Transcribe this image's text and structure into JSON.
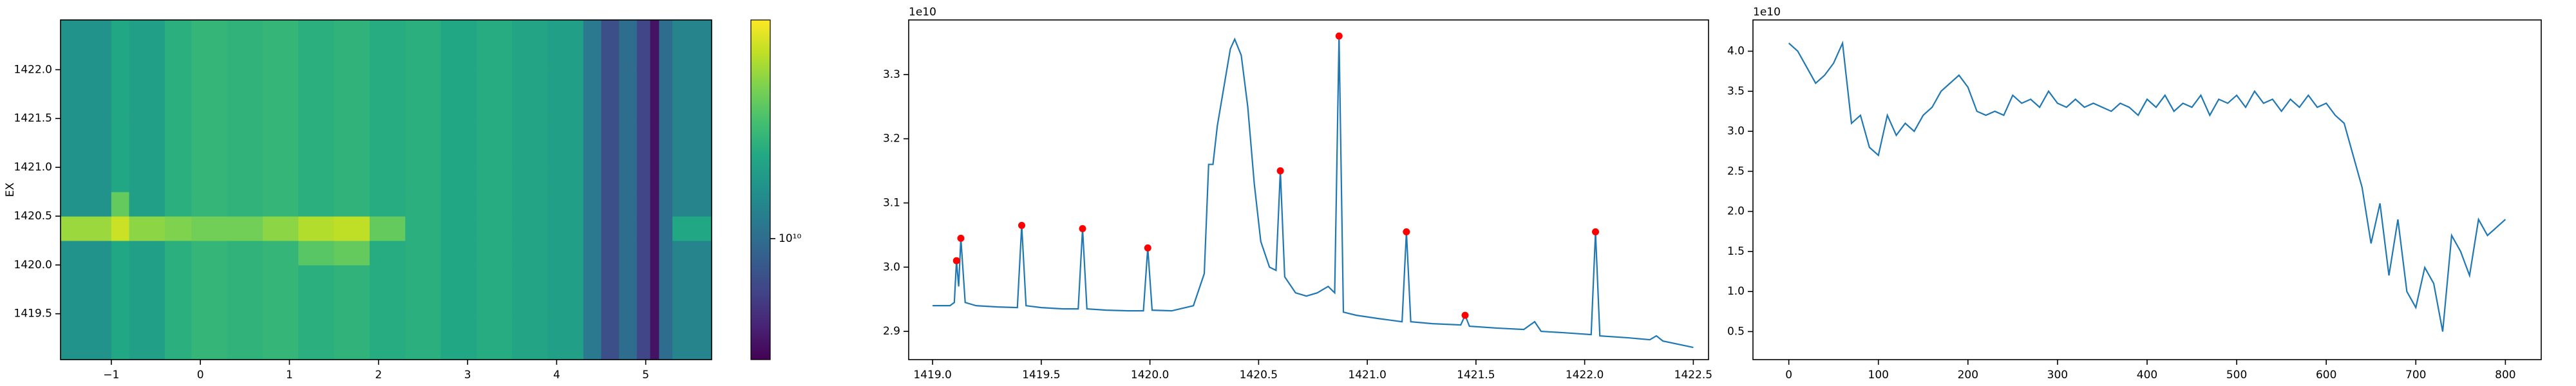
{
  "chart_data": [
    {
      "type": "heatmap",
      "ylabel": "EX",
      "x_edges": [
        -1.57,
        -1.0,
        -0.8,
        -0.4,
        -0.1,
        0.3,
        0.7,
        1.1,
        1.5,
        1.9,
        2.3,
        2.7,
        3.1,
        3.5,
        3.9,
        4.3,
        4.5,
        4.7,
        4.9,
        5.05,
        5.15,
        5.3,
        5.74
      ],
      "y_edges": [
        1419.03,
        1419.5,
        1420.0,
        1420.25,
        1420.5,
        1420.75,
        1421.0,
        1421.5,
        1422.0,
        1422.51
      ],
      "values": [
        [
          13500000000.0,
          16000000000.0,
          15000000000.0,
          17000000000.0,
          18000000000.0,
          17500000000.0,
          18000000000.0,
          17000000000.0,
          17500000000.0,
          16500000000.0,
          17000000000.0,
          16000000000.0,
          16500000000.0,
          15500000000.0,
          15000000000.0,
          11000000000.0,
          8000000000.0,
          10000000000.0,
          7500000000.0,
          5500000000.0,
          10000000000.0,
          12000000000.0
        ],
        [
          13500000000.0,
          16000000000.0,
          15000000000.0,
          17000000000.0,
          18000000000.0,
          17500000000.0,
          18000000000.0,
          17000000000.0,
          17500000000.0,
          16500000000.0,
          17000000000.0,
          16000000000.0,
          16500000000.0,
          15500000000.0,
          15000000000.0,
          11000000000.0,
          8000000000.0,
          10000000000.0,
          7500000000.0,
          5500000000.0,
          10000000000.0,
          12000000000.0
        ],
        [
          13500000000.0,
          16000000000.0,
          15000000000.0,
          17000000000.0,
          18000000000.0,
          17500000000.0,
          18000000000.0,
          21000000000.0,
          22000000000.0,
          16500000000.0,
          17000000000.0,
          16000000000.0,
          16500000000.0,
          15500000000.0,
          15000000000.0,
          11000000000.0,
          8000000000.0,
          10000000000.0,
          7500000000.0,
          5500000000.0,
          10000000000.0,
          12000000000.0
        ],
        [
          26000000000.0,
          30000000000.0,
          25000000000.0,
          24000000000.0,
          23000000000.0,
          23000000000.0,
          25000000000.0,
          28000000000.0,
          29000000000.0,
          22000000000.0,
          17000000000.0,
          16000000000.0,
          16500000000.0,
          15500000000.0,
          15000000000.0,
          11000000000.0,
          8000000000.0,
          10000000000.0,
          7500000000.0,
          5500000000.0,
          10000000000.0,
          16000000000.0
        ],
        [
          13500000000.0,
          22000000000.0,
          15000000000.0,
          17000000000.0,
          18000000000.0,
          17500000000.0,
          18000000000.0,
          17000000000.0,
          17500000000.0,
          16500000000.0,
          17000000000.0,
          16000000000.0,
          16500000000.0,
          15500000000.0,
          15000000000.0,
          11000000000.0,
          8000000000.0,
          10000000000.0,
          7500000000.0,
          5500000000.0,
          10000000000.0,
          12000000000.0
        ],
        [
          13500000000.0,
          16000000000.0,
          15000000000.0,
          17000000000.0,
          18000000000.0,
          17500000000.0,
          18000000000.0,
          17000000000.0,
          17500000000.0,
          16500000000.0,
          17000000000.0,
          16000000000.0,
          16500000000.0,
          15500000000.0,
          15000000000.0,
          11000000000.0,
          8000000000.0,
          10000000000.0,
          7500000000.0,
          5500000000.0,
          10000000000.0,
          12000000000.0
        ],
        [
          13500000000.0,
          16000000000.0,
          15000000000.0,
          17000000000.0,
          18000000000.0,
          17500000000.0,
          18000000000.0,
          17000000000.0,
          17500000000.0,
          16500000000.0,
          17000000000.0,
          16000000000.0,
          16500000000.0,
          15500000000.0,
          15000000000.0,
          11000000000.0,
          8000000000.0,
          10000000000.0,
          7500000000.0,
          5500000000.0,
          10000000000.0,
          12000000000.0
        ],
        [
          13500000000.0,
          16000000000.0,
          15000000000.0,
          17000000000.0,
          18000000000.0,
          17500000000.0,
          18000000000.0,
          17000000000.0,
          17500000000.0,
          16500000000.0,
          17000000000.0,
          16000000000.0,
          16500000000.0,
          15500000000.0,
          15000000000.0,
          11000000000.0,
          8000000000.0,
          10000000000.0,
          7500000000.0,
          5500000000.0,
          10000000000.0,
          12000000000.0
        ],
        [
          13500000000.0,
          16000000000.0,
          15000000000.0,
          17000000000.0,
          18000000000.0,
          17500000000.0,
          18000000000.0,
          17000000000.0,
          17500000000.0,
          16500000000.0,
          17000000000.0,
          16000000000.0,
          16500000000.0,
          15500000000.0,
          15000000000.0,
          11000000000.0,
          8000000000.0,
          10000000000.0,
          7500000000.0,
          5500000000.0,
          10000000000.0,
          12000000000.0
        ]
      ],
      "xlim": [
        -1.57,
        5.74
      ],
      "ylim": [
        1419.03,
        1422.51
      ],
      "xticks": [
        {
          "value": -1,
          "label": "−1"
        },
        0,
        1,
        2,
        3,
        4,
        5
      ],
      "yticks": [
        1419.5,
        {
          "value": 1420,
          "label": "1420.0"
        },
        1420.5,
        {
          "value": 1421,
          "label": "1421.0"
        },
        1421.5,
        {
          "value": 1422,
          "label": "1422.0"
        }
      ],
      "colorbar": {
        "colormap": "viridis",
        "scale": "log",
        "lim": [
          5000000000.0,
          35000000000.0
        ],
        "ticks": [
          {
            "value": 10000000000.0,
            "label": "10¹⁰"
          }
        ]
      }
    },
    {
      "type": "line",
      "offset_text": "1e10",
      "series": [
        {
          "color": "#1f77b4",
          "style": "line",
          "x": [
            1419.0,
            1419.08,
            1419.1,
            1419.11,
            1419.12,
            1419.13,
            1419.15,
            1419.2,
            1419.3,
            1419.39,
            1419.41,
            1419.43,
            1419.5,
            1419.6,
            1419.67,
            1419.69,
            1419.71,
            1419.8,
            1419.9,
            1419.97,
            1419.99,
            1420.01,
            1420.1,
            1420.2,
            1420.25,
            1420.27,
            1420.29,
            1420.31,
            1420.34,
            1420.37,
            1420.39,
            1420.42,
            1420.45,
            1420.48,
            1420.51,
            1420.55,
            1420.58,
            1420.6,
            1420.62,
            1420.67,
            1420.72,
            1420.77,
            1420.82,
            1420.85,
            1420.87,
            1420.89,
            1420.95,
            1421.05,
            1421.16,
            1421.18,
            1421.2,
            1421.3,
            1421.43,
            1421.45,
            1421.47,
            1421.6,
            1421.72,
            1421.77,
            1421.8,
            1421.9,
            1422.03,
            1422.05,
            1422.07,
            1422.2,
            1422.3,
            1422.33,
            1422.36,
            1422.5
          ],
          "values": [
            2.94,
            2.94,
            2.945,
            3.01,
            2.97,
            3.045,
            2.945,
            2.94,
            2.938,
            2.937,
            3.065,
            2.94,
            2.937,
            2.935,
            2.935,
            3.06,
            2.935,
            2.933,
            2.932,
            2.932,
            3.03,
            2.933,
            2.932,
            2.94,
            2.99,
            3.16,
            3.16,
            3.22,
            3.28,
            3.34,
            3.355,
            3.33,
            3.25,
            3.13,
            3.04,
            3.0,
            2.995,
            3.15,
            2.985,
            2.96,
            2.955,
            2.96,
            2.97,
            2.96,
            3.36,
            2.93,
            2.925,
            2.92,
            2.915,
            3.055,
            2.915,
            2.912,
            2.91,
            2.925,
            2.908,
            2.905,
            2.903,
            2.915,
            2.9,
            2.898,
            2.895,
            3.055,
            2.893,
            2.89,
            2.887,
            2.893,
            2.885,
            2.875
          ]
        },
        {
          "color": "#ff0000",
          "style": "markers",
          "x": [
            1419.11,
            1419.13,
            1419.41,
            1419.69,
            1419.99,
            1420.6,
            1420.87,
            1421.18,
            1421.45,
            1422.05
          ],
          "values": [
            3.01,
            3.045,
            3.065,
            3.06,
            3.03,
            3.15,
            3.36,
            3.055,
            2.925,
            3.055
          ]
        }
      ],
      "xlim": [
        1418.89,
        1422.57
      ],
      "ylim": [
        2.856,
        3.385
      ],
      "xticks": [
        {
          "value": 1419,
          "label": "1419.0"
        },
        1419.5,
        {
          "value": 1420,
          "label": "1420.0"
        },
        1420.5,
        {
          "value": 1421,
          "label": "1421.0"
        },
        1421.5,
        {
          "value": 1422,
          "label": "1422.0"
        },
        1422.5
      ],
      "yticks": [
        2.9,
        {
          "value": 3,
          "label": "3.0"
        },
        3.1,
        3.2,
        3.3
      ]
    },
    {
      "type": "line",
      "offset_text": "1e10",
      "series": [
        {
          "color": "#1f77b4",
          "style": "line",
          "x": [
            0,
            10,
            20,
            30,
            40,
            50,
            60,
            70,
            80,
            90,
            100,
            110,
            120,
            130,
            140,
            150,
            160,
            170,
            180,
            190,
            200,
            210,
            220,
            230,
            240,
            250,
            260,
            270,
            280,
            290,
            300,
            310,
            320,
            330,
            340,
            350,
            360,
            370,
            380,
            390,
            400,
            410,
            420,
            430,
            440,
            450,
            460,
            470,
            480,
            490,
            500,
            510,
            520,
            530,
            540,
            550,
            560,
            570,
            580,
            590,
            600,
            610,
            620,
            630,
            640,
            650,
            660,
            670,
            680,
            690,
            700,
            710,
            720,
            730,
            740,
            750,
            760,
            770,
            780,
            790,
            800
          ],
          "values": [
            4.1,
            4.0,
            3.8,
            3.6,
            3.7,
            3.85,
            4.1,
            3.1,
            3.2,
            2.8,
            2.7,
            3.2,
            2.95,
            3.1,
            3.0,
            3.2,
            3.3,
            3.5,
            3.6,
            3.7,
            3.55,
            3.25,
            3.2,
            3.25,
            3.2,
            3.45,
            3.35,
            3.4,
            3.3,
            3.5,
            3.35,
            3.3,
            3.4,
            3.3,
            3.35,
            3.3,
            3.25,
            3.35,
            3.3,
            3.2,
            3.4,
            3.3,
            3.45,
            3.25,
            3.35,
            3.3,
            3.45,
            3.2,
            3.4,
            3.35,
            3.45,
            3.3,
            3.5,
            3.35,
            3.4,
            3.25,
            3.4,
            3.3,
            3.45,
            3.3,
            3.35,
            3.2,
            3.1,
            2.7,
            2.3,
            1.6,
            2.1,
            1.2,
            1.9,
            1.0,
            0.8,
            1.3,
            1.1,
            0.5,
            1.7,
            1.5,
            1.2,
            1.9,
            1.7,
            1.8,
            1.9
          ]
        }
      ],
      "xlim": [
        -40,
        840
      ],
      "ylim": [
        0.15,
        4.39
      ],
      "xticks": [
        0,
        100,
        200,
        300,
        400,
        500,
        600,
        700,
        800
      ],
      "yticks": [
        0.5,
        {
          "value": 1,
          "label": "1.0"
        },
        1.5,
        {
          "value": 2,
          "label": "2.0"
        },
        2.5,
        {
          "value": 3,
          "label": "3.0"
        },
        3.5,
        {
          "value": 4,
          "label": "4.0"
        }
      ]
    }
  ]
}
